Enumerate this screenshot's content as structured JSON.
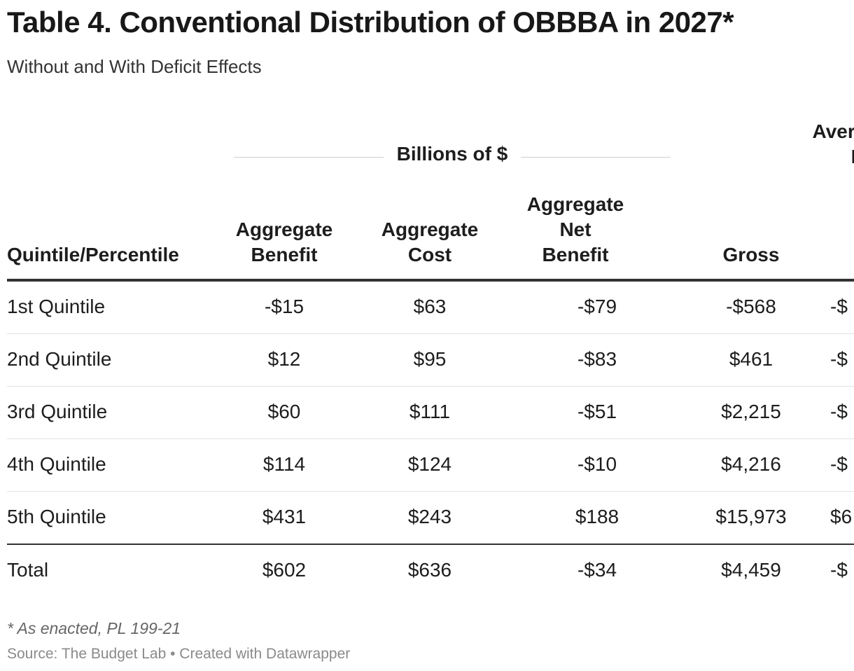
{
  "header": {
    "title": "Table 4. Conventional Distribution of OBBBA in 2027*",
    "subtitle": "Without and With Deficit Effects"
  },
  "chart_data": {
    "type": "table",
    "group_header": "Billions of $",
    "cut_group_header_line1": "Average",
    "cut_group_header_line2": "Hou",
    "columns": [
      {
        "line1": "Quintile/Percentile",
        "line2": "",
        "line3": ""
      },
      {
        "line1": "Aggregate",
        "line2": "Benefit",
        "line3": ""
      },
      {
        "line1": "Aggregate",
        "line2": "Cost",
        "line3": ""
      },
      {
        "line1": "Aggregate",
        "line2": "Net",
        "line3": "Benefit"
      },
      {
        "line1": "Gross",
        "line2": "",
        "line3": ""
      }
    ],
    "rows": [
      {
        "label": "1st Quintile",
        "benefit": "-$15",
        "cost": "$63",
        "net": "-$79",
        "gross": "-$568",
        "cut": "-$"
      },
      {
        "label": "2nd Quintile",
        "benefit": "$12",
        "cost": "$95",
        "net": "-$83",
        "gross": "$461",
        "cut": "-$"
      },
      {
        "label": "3rd Quintile",
        "benefit": "$60",
        "cost": "$111",
        "net": "-$51",
        "gross": "$2,215",
        "cut": "-$"
      },
      {
        "label": "4th Quintile",
        "benefit": "$114",
        "cost": "$124",
        "net": "-$10",
        "gross": "$4,216",
        "cut": "-$"
      },
      {
        "label": "5th Quintile",
        "benefit": "$431",
        "cost": "$243",
        "net": "$188",
        "gross": "$15,973",
        "cut": "$6"
      }
    ],
    "total": {
      "label": "Total",
      "benefit": "$602",
      "cost": "$636",
      "net": "-$34",
      "gross": "$4,459",
      "cut": "-$"
    }
  },
  "footer": {
    "note": "* As enacted, PL 199-21",
    "source": "Source: The Budget Lab • Created with Datawrapper"
  }
}
